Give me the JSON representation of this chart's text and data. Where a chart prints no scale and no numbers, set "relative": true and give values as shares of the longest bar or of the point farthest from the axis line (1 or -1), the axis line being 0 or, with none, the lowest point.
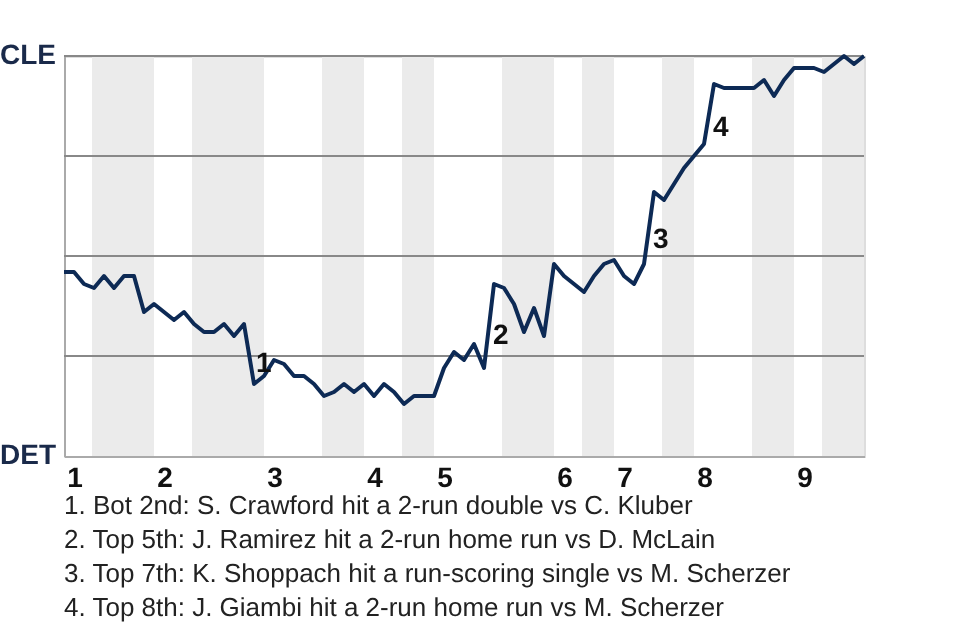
{
  "chart_data": {
    "type": "line",
    "relative": true,
    "categories": [
      null,
      "1",
      null,
      null,
      null,
      null,
      null,
      null,
      null,
      null,
      "2",
      null,
      null,
      null,
      null,
      null,
      null,
      null,
      null,
      null,
      null,
      "3",
      null,
      null,
      null,
      null,
      null,
      null,
      null,
      null,
      null,
      "4",
      null,
      null,
      null,
      null,
      null,
      null,
      "5",
      null,
      null,
      null,
      null,
      null,
      null,
      null,
      null,
      null,
      null,
      null,
      "6",
      null,
      null,
      null,
      null,
      null,
      "7",
      null,
      null,
      null,
      null,
      null,
      null,
      null,
      "8",
      null,
      null,
      null,
      null,
      null,
      null,
      null,
      null,
      null,
      "9",
      null,
      null,
      null,
      null,
      null,
      null
    ],
    "grid": false,
    "marker": "none",
    "line_style": "solid",
    "ref_lines": [
      {
        "axis": "y",
        "value": 0.25,
        "color": "#888888"
      },
      {
        "axis": "y",
        "value": 0.5,
        "color": "#888888"
      },
      {
        "axis": "y",
        "value": 0.75,
        "color": "#888888"
      },
      {
        "axis": "y",
        "value": 1,
        "color": "#888888"
      }
    ],
    "series": [
      {
        "color": "#0d2a55",
        "values": [
          0.46,
          0.46,
          0.43,
          0.42,
          0.45,
          0.42,
          0.45,
          0.45,
          0.36,
          0.38,
          0.36,
          0.34,
          0.36,
          0.33,
          0.31,
          0.31,
          0.33,
          0.3,
          0.33,
          0.18,
          0.2,
          0.24,
          0.23,
          0.2,
          0.2,
          0.18,
          0.15,
          0.16,
          0.18,
          0.16,
          0.18,
          0.15,
          0.18,
          0.16,
          0.13,
          0.15,
          0.15,
          0.15,
          0.22,
          0.26,
          0.24,
          0.28,
          0.22,
          0.43,
          0.42,
          0.38,
          0.31,
          0.37,
          0.3,
          0.48,
          0.45,
          0.43,
          0.41,
          0.45,
          0.48,
          0.49,
          0.45,
          0.43,
          0.48,
          0.66,
          0.64,
          0.68,
          0.72,
          0.75,
          0.78,
          0.93,
          0.92,
          0.92,
          0.92,
          0.92,
          0.94,
          0.9,
          0.94,
          0.97,
          0.97,
          0.97,
          0.96,
          0.98,
          1.0,
          0.98,
          1.0
        ]
      }
    ],
    "annotations": [
      "1",
      "2",
      "3",
      "4",
      "CLE",
      "DET",
      "1. Bot 2nd: S. Crawford hit a 2-run double vs C. Kluber",
      "2. Top 5th: J. Ramirez hit a 2-run home run vs D. McLain",
      "3. Top 7th: K. Shoppach hit a run-scoring single vs M. Scherzer",
      "4. Top 8th: J. Giambi hit a 2-run home run vs M. Scherzer"
    ]
  }
}
